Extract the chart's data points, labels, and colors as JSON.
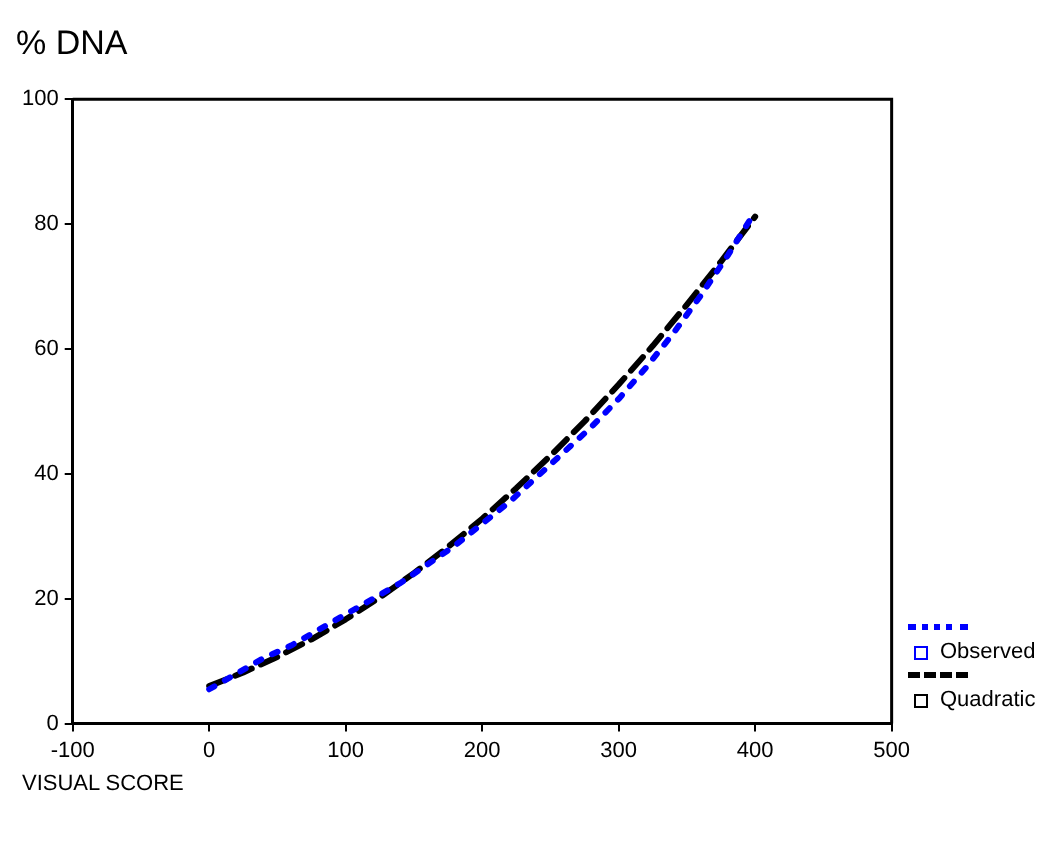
{
  "chart_data": {
    "type": "line",
    "ylabel": "% DNA",
    "xlabel": "VISUAL SCORE",
    "xlim": [
      -100,
      500
    ],
    "xticks": [
      -100,
      0,
      100,
      200,
      300,
      400,
      500
    ],
    "ylim": [
      0,
      100
    ],
    "yticks": [
      0,
      20,
      40,
      60,
      80,
      100
    ],
    "grid": false,
    "legend": "bottom right",
    "marker": "none",
    "series": [
      {
        "name": "Observed",
        "color": "#0000ff",
        "line_style": "dotted",
        "x": [
          0,
          20,
          40,
          60,
          80,
          100,
          120,
          140,
          160,
          180,
          200,
          220,
          240,
          260,
          280,
          300,
          320,
          340,
          360,
          380,
          400
        ],
        "values": [
          5.5,
          8,
          10.5,
          12.5,
          15,
          17.5,
          20,
          22.5,
          25.5,
          28.5,
          32,
          35.5,
          39.5,
          43.5,
          47.5,
          52,
          57,
          62.5,
          68.5,
          75,
          82
        ]
      },
      {
        "name": "Quadratic",
        "color": "#000000",
        "line_style": "dashed",
        "x": [
          0,
          25,
          50,
          75,
          100,
          125,
          150,
          175,
          200,
          225,
          250,
          275,
          300,
          325,
          350,
          375,
          400
        ],
        "values": [
          6,
          8.2,
          10.7,
          13.5,
          16.7,
          20.2,
          24.1,
          28.3,
          32.8,
          37.7,
          42.9,
          48.4,
          54.3,
          60.5,
          67.1,
          74,
          81.2
        ]
      }
    ]
  }
}
